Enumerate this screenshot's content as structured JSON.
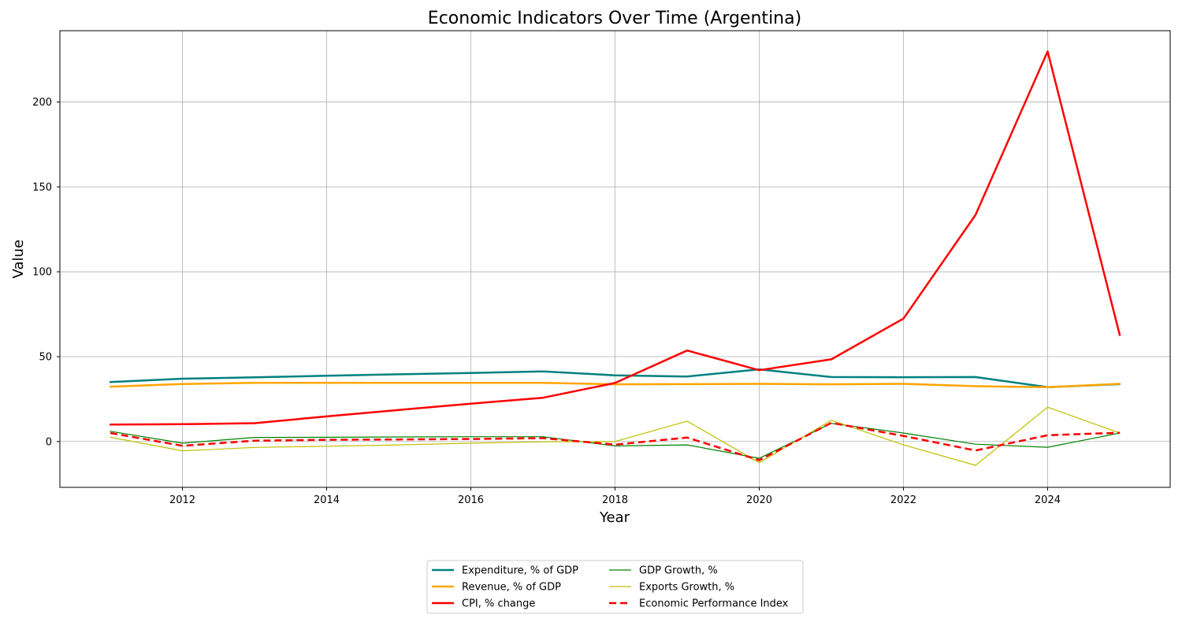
{
  "chart_data": {
    "type": "line",
    "title": "Economic Indicators Over Time (Argentina)",
    "xlabel": "Year",
    "ylabel": "Value",
    "xlim": [
      2010.3,
      2025.7
    ],
    "ylim": [
      -27,
      242
    ],
    "x_ticks": [
      2012,
      2014,
      2016,
      2018,
      2020,
      2022,
      2024
    ],
    "y_ticks": [
      0,
      50,
      100,
      150,
      200
    ],
    "grid": true,
    "legend_position": "bottom-center",
    "x": [
      2011,
      2012,
      2013,
      2014,
      2015,
      2016,
      2017,
      2018,
      2019,
      2020,
      2021,
      2022,
      2023,
      2024,
      2025
    ],
    "series": [
      {
        "name": "Expenditure, % of GDP",
        "color": "#008080",
        "style": "solid",
        "width": "thick",
        "values": [
          35.0,
          37.0,
          37.8,
          38.7,
          39.6,
          40.4,
          41.3,
          39.0,
          38.3,
          42.5,
          38.0,
          37.9,
          38.0,
          32.0,
          33.8
        ]
      },
      {
        "name": "Revenue, % of GDP",
        "color": "#FFA500",
        "style": "solid",
        "width": "thick",
        "values": [
          32.3,
          33.9,
          34.6,
          34.6,
          34.6,
          34.6,
          34.6,
          33.7,
          33.8,
          34.0,
          33.7,
          34.0,
          32.6,
          32.0,
          34.0
        ]
      },
      {
        "name": "CPI, % change",
        "color": "#FF0000",
        "style": "solid",
        "width": "thick",
        "values": [
          10.0,
          10.2,
          10.8,
          14.8,
          18.6,
          22.3,
          25.8,
          34.5,
          53.6,
          42.0,
          48.4,
          72.4,
          133.5,
          229.8,
          62.7
        ]
      },
      {
        "name": "GDP Growth, %",
        "color": "#008000",
        "style": "solid",
        "width": "thin",
        "values": [
          6.0,
          -1.0,
          2.4,
          2.5,
          2.7,
          2.8,
          2.8,
          -2.6,
          -2.0,
          -9.9,
          10.7,
          5.0,
          -1.6,
          -3.4,
          5.0
        ]
      },
      {
        "name": "Exports Growth, %",
        "color": "#BFBF00",
        "style": "solid",
        "width": "thin",
        "values": [
          2.5,
          -5.5,
          -3.5,
          -2.8,
          -2.0,
          -1.0,
          -0.2,
          0.0,
          12.0,
          -12.5,
          12.5,
          -2.0,
          -14.0,
          20.2,
          5.0
        ]
      },
      {
        "name": "Economic Performance Index",
        "color": "#FF0000",
        "style": "dashed",
        "width": "thick",
        "values": [
          5.0,
          -2.5,
          0.5,
          1.0,
          1.2,
          1.5,
          2.0,
          -1.8,
          2.3,
          -11.0,
          11.0,
          3.3,
          -5.3,
          3.7,
          5.2
        ]
      }
    ]
  }
}
